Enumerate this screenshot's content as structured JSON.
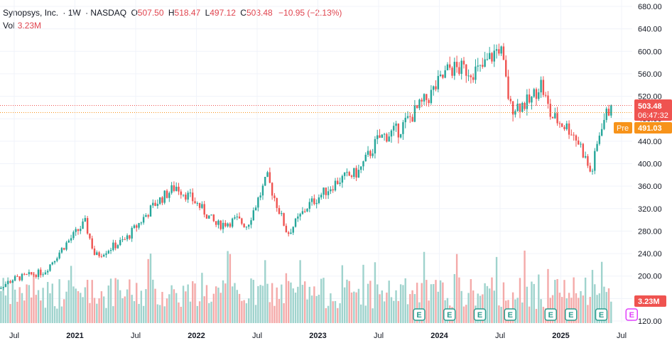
{
  "legend": {
    "name": "Synopsys, Inc.",
    "interval": "1W",
    "exchange": "NASDAQ",
    "open_label": "O",
    "open": "507.50",
    "high_label": "H",
    "high": "518.47",
    "low_label": "L",
    "low": "497.12",
    "close_label": "C",
    "close": "503.48",
    "change": "−10.95 (−2.13%)",
    "vol_label": "Vol",
    "vol": "3.23M"
  },
  "badges": {
    "last_price": "503.48",
    "countdown": "06:47:32",
    "pre_label": "Pre",
    "pre_price": "491.03",
    "volume": "3.23M"
  },
  "colors": {
    "up": "#26a69a",
    "down": "#ef5350",
    "up_vol": "#9fd3cd",
    "down_vol": "#f4aaa9",
    "pre": "#f7931a",
    "earnings_future": "#e040fb"
  },
  "chart_data": {
    "type": "candlestick",
    "price_axis": {
      "min": 120,
      "max": 680,
      "ticks": [
        680,
        640,
        600,
        560,
        520,
        480,
        440,
        400,
        360,
        320,
        280,
        240,
        200,
        160,
        120
      ]
    },
    "time_axis": [
      {
        "label": "Jul",
        "date": "2020-07",
        "bold": false
      },
      {
        "label": "2021",
        "date": "2021-01",
        "bold": true
      },
      {
        "label": "Jul",
        "date": "2021-07",
        "bold": false
      },
      {
        "label": "2022",
        "date": "2022-01",
        "bold": true
      },
      {
        "label": "Jul",
        "date": "2022-07",
        "bold": false
      },
      {
        "label": "2023",
        "date": "2023-01",
        "bold": true
      },
      {
        "label": "Jul",
        "date": "2023-07",
        "bold": false
      },
      {
        "label": "2024",
        "date": "2024-01",
        "bold": true
      },
      {
        "label": "Jul",
        "date": "2024-07",
        "bold": false
      },
      {
        "label": "2025",
        "date": "2025-01",
        "bold": true
      },
      {
        "label": "Jul",
        "date": "2025-07",
        "bold": false
      }
    ],
    "price_path": [
      [
        "2020-05",
        175
      ],
      [
        "2020-07",
        195
      ],
      [
        "2020-10",
        208
      ],
      [
        "2020-12",
        255
      ],
      [
        "2021-02",
        295
      ],
      [
        "2021-03",
        235
      ],
      [
        "2021-06",
        265
      ],
      [
        "2021-09",
        330
      ],
      [
        "2021-11",
        360
      ],
      [
        "2022-01",
        330
      ],
      [
        "2022-03",
        290
      ],
      [
        "2022-05",
        300
      ],
      [
        "2022-06",
        290
      ],
      [
        "2022-08",
        375
      ],
      [
        "2022-10",
        275
      ],
      [
        "2022-12",
        325
      ],
      [
        "2023-03",
        370
      ],
      [
        "2023-05",
        385
      ],
      [
        "2023-07",
        445
      ],
      [
        "2023-09",
        460
      ],
      [
        "2023-12",
        520
      ],
      [
        "2024-02",
        570
      ],
      [
        "2024-05",
        565
      ],
      [
        "2024-07",
        610
      ],
      [
        "2024-08",
        500
      ],
      [
        "2024-10",
        510
      ],
      [
        "2024-11",
        545
      ],
      [
        "2024-12",
        485
      ],
      [
        "2025-02",
        460
      ],
      [
        "2025-03",
        430
      ],
      [
        "2025-04",
        380
      ],
      [
        "2025-05",
        470
      ],
      [
        "2025-06",
        503.48
      ]
    ],
    "earnings_dates": [
      "2023-11",
      "2024-02",
      "2024-05",
      "2024-08",
      "2024-12",
      "2025-02",
      "2025-05"
    ],
    "upcoming_earnings_date": "2025-08",
    "last_price": 503.48,
    "premarket_price": 491.03
  }
}
